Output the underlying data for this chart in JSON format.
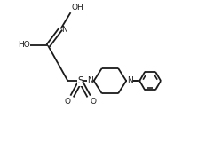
{
  "bg_color": "#ffffff",
  "line_color": "#1a1a1a",
  "line_width": 1.3,
  "font_size": 6.5,
  "xlim": [
    0,
    1.15
  ],
  "ylim": [
    0,
    1.0
  ],
  "figsize": [
    2.32,
    1.6
  ],
  "dpi": 100
}
